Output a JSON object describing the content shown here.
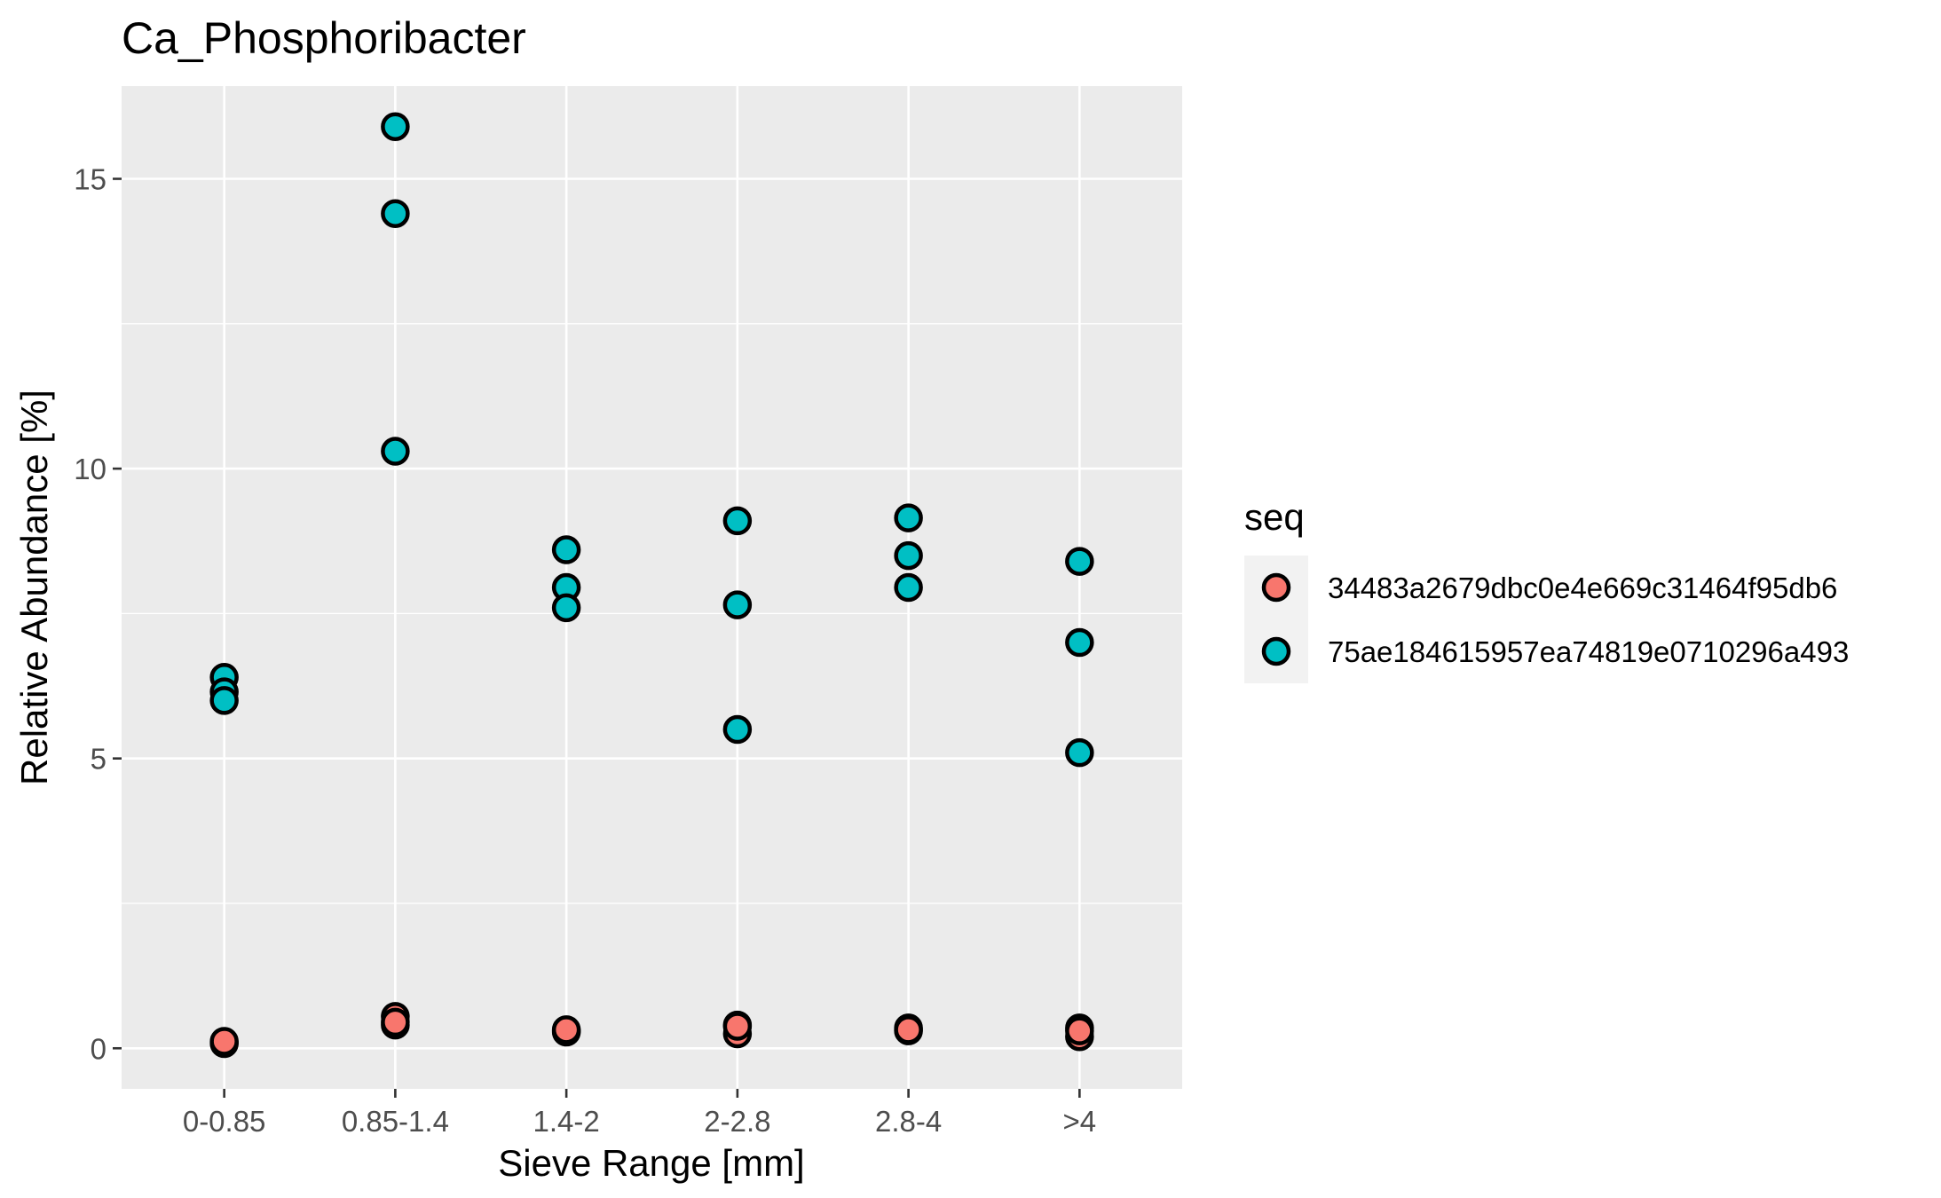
{
  "chart_data": {
    "type": "scatter",
    "title": "Ca_Phosphoribacter",
    "xlabel": "Sieve Range [mm]",
    "ylabel": "Relative Abundance [%]",
    "categories": [
      "0-0.85",
      "0.85-1.4",
      "1.4-2",
      "2-2.8",
      "2.8-4",
      ">4"
    ],
    "y_ticks": [
      "0",
      "5",
      "10",
      "15"
    ],
    "ylim": [
      -0.7,
      16.6
    ],
    "grid": true,
    "legend": {
      "title": "seq",
      "position": "right"
    },
    "series": [
      {
        "name": "34483a2679dbc0e4e669c31464f95db6",
        "color": "#F8766D",
        "points": [
          {
            "x": "0-0.85",
            "y": 0.1
          },
          {
            "x": "0-0.85",
            "y": 0.08
          },
          {
            "x": "0-0.85",
            "y": 0.12
          },
          {
            "x": "0.85-1.4",
            "y": 0.55
          },
          {
            "x": "0.85-1.4",
            "y": 0.4
          },
          {
            "x": "0.85-1.4",
            "y": 0.45
          },
          {
            "x": "1.4-2",
            "y": 0.3
          },
          {
            "x": "1.4-2",
            "y": 0.28
          },
          {
            "x": "1.4-2",
            "y": 0.32
          },
          {
            "x": "2-2.8",
            "y": 0.4
          },
          {
            "x": "2-2.8",
            "y": 0.25
          },
          {
            "x": "2-2.8",
            "y": 0.38
          },
          {
            "x": "2.8-4",
            "y": 0.35
          },
          {
            "x": "2.8-4",
            "y": 0.3
          },
          {
            "x": "2.8-4",
            "y": 0.32
          },
          {
            "x": ">4",
            "y": 0.35
          },
          {
            "x": ">4",
            "y": 0.2
          },
          {
            "x": ">4",
            "y": 0.3
          }
        ]
      },
      {
        "name": "75ae184615957ea74819e0710296a493",
        "color": "#00BFC4",
        "points": [
          {
            "x": "0-0.85",
            "y": 6.4
          },
          {
            "x": "0-0.85",
            "y": 6.15
          },
          {
            "x": "0-0.85",
            "y": 6.0
          },
          {
            "x": "0.85-1.4",
            "y": 15.9
          },
          {
            "x": "0.85-1.4",
            "y": 14.4
          },
          {
            "x": "0.85-1.4",
            "y": 10.3
          },
          {
            "x": "1.4-2",
            "y": 8.6
          },
          {
            "x": "1.4-2",
            "y": 7.95
          },
          {
            "x": "1.4-2",
            "y": 7.6
          },
          {
            "x": "2-2.8",
            "y": 9.1
          },
          {
            "x": "2-2.8",
            "y": 7.65
          },
          {
            "x": "2-2.8",
            "y": 5.5
          },
          {
            "x": "2.8-4",
            "y": 9.15
          },
          {
            "x": "2.8-4",
            "y": 8.5
          },
          {
            "x": "2.8-4",
            "y": 7.95
          },
          {
            "x": ">4",
            "y": 8.4
          },
          {
            "x": ">4",
            "y": 7.0
          },
          {
            "x": ">4",
            "y": 5.1
          }
        ]
      }
    ]
  }
}
